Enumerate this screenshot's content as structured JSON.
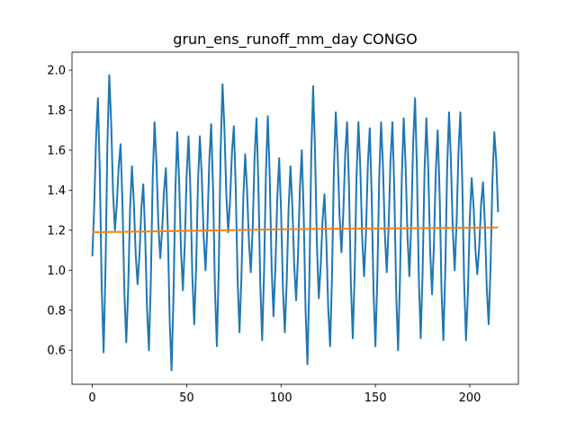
{
  "chart_data": {
    "type": "line",
    "title": "grun_ens_runoff_mm_day CONGO",
    "xlim": [
      -10.75,
      225.75
    ],
    "xticks": [
      0,
      50,
      100,
      150,
      200
    ],
    "ylim": [
      0.43,
      2.09
    ],
    "yticks": [
      0.6,
      0.8,
      {
        "value": 1,
        "label": "1.0"
      },
      1.2,
      1.4,
      1.6,
      1.8,
      {
        "value": 2,
        "label": "2.0"
      }
    ],
    "grid": false,
    "series": [
      {
        "color": "#1f77b4",
        "x": [
          0,
          1,
          2,
          3,
          4,
          5,
          6,
          7,
          8,
          9,
          10,
          11,
          12,
          13,
          14,
          15,
          16,
          17,
          18,
          19,
          20,
          21,
          22,
          23,
          24,
          25,
          26,
          27,
          28,
          29,
          30,
          31,
          32,
          33,
          34,
          35,
          36,
          37,
          38,
          39,
          40,
          41,
          42,
          43,
          44,
          45,
          46,
          47,
          48,
          49,
          50,
          51,
          52,
          53,
          54,
          55,
          56,
          57,
          58,
          59,
          60,
          61,
          62,
          63,
          64,
          65,
          66,
          67,
          68,
          69,
          70,
          71,
          72,
          73,
          74,
          75,
          76,
          77,
          78,
          79,
          80,
          81,
          82,
          83,
          84,
          85,
          86,
          87,
          88,
          89,
          90,
          91,
          92,
          93,
          94,
          95,
          96,
          97,
          98,
          99,
          100,
          101,
          102,
          103,
          104,
          105,
          106,
          107,
          108,
          109,
          110,
          111,
          112,
          113,
          114,
          115,
          116,
          117,
          118,
          119,
          120,
          121,
          122,
          123,
          124,
          125,
          126,
          127,
          128,
          129,
          130,
          131,
          132,
          133,
          134,
          135,
          136,
          137,
          138,
          139,
          140,
          141,
          142,
          143,
          144,
          145,
          146,
          147,
          148,
          149,
          150,
          151,
          152,
          153,
          154,
          155,
          156,
          157,
          158,
          159,
          160,
          161,
          162,
          163,
          164,
          165,
          166,
          167,
          168,
          169,
          170,
          171,
          172,
          173,
          174,
          175,
          176,
          177,
          178,
          179,
          180,
          181,
          182,
          183,
          184,
          185,
          186,
          187,
          188,
          189,
          190,
          191,
          192,
          193,
          194,
          195,
          196,
          197,
          198,
          199,
          200,
          201,
          202,
          203,
          204,
          205,
          206,
          207,
          208,
          209,
          210,
          211,
          212,
          213,
          214,
          215
        ],
        "values": [
          1.07,
          1.31,
          1.66,
          1.86,
          1.48,
          0.91,
          0.59,
          1.01,
          1.63,
          1.975,
          1.74,
          1.39,
          1.2,
          1.33,
          1.52,
          1.63,
          1.33,
          0.89,
          0.64,
          0.9,
          1.3,
          1.52,
          1.34,
          1.08,
          0.93,
          1.08,
          1.31,
          1.43,
          1.18,
          0.81,
          0.6,
          0.94,
          1.46,
          1.74,
          1.54,
          1.23,
          1.06,
          1.2,
          1.4,
          1.51,
          1.21,
          0.75,
          0.5,
          0.86,
          1.39,
          1.69,
          1.45,
          1.1,
          0.9,
          1.13,
          1.48,
          1.67,
          1.39,
          0.97,
          0.73,
          1.01,
          1.44,
          1.67,
          1.47,
          1.17,
          1.0,
          1.22,
          1.55,
          1.73,
          1.4,
          0.9,
          0.62,
          1.01,
          1.6,
          1.93,
          1.71,
          1.38,
          1.19,
          1.35,
          1.59,
          1.72,
          1.41,
          0.95,
          0.69,
          0.96,
          1.36,
          1.58,
          1.4,
          1.14,
          0.99,
          1.22,
          1.57,
          1.76,
          1.43,
          0.93,
          0.65,
          0.99,
          1.49,
          1.77,
          1.47,
          1.02,
          0.77,
          1.01,
          1.36,
          1.56,
          1.3,
          0.91,
          0.69,
          0.94,
          1.31,
          1.52,
          1.32,
          1.02,
          0.85,
          1.08,
          1.41,
          1.6,
          1.28,
          0.8,
          0.53,
          0.95,
          1.57,
          1.92,
          1.6,
          1.13,
          0.86,
          1.02,
          1.25,
          1.38,
          1.15,
          0.81,
          0.62,
          0.97,
          1.5,
          1.79,
          1.58,
          1.27,
          1.09,
          1.29,
          1.58,
          1.74,
          1.42,
          0.93,
          0.66,
          0.98,
          1.47,
          1.74,
          1.51,
          1.16,
          0.97,
          1.19,
          1.53,
          1.71,
          1.38,
          0.89,
          0.62,
          0.96,
          1.46,
          1.74,
          1.52,
          1.18,
          0.99,
          1.22,
          1.55,
          1.74,
          1.4,
          0.89,
          0.6,
          0.95,
          1.47,
          1.76,
          1.52,
          1.17,
          0.97,
          1.24,
          1.64,
          1.86,
          1.5,
          0.96,
          0.66,
          0.99,
          1.49,
          1.76,
          1.5,
          1.1,
          0.88,
          1.13,
          1.5,
          1.7,
          1.39,
          0.91,
          0.65,
          0.99,
          1.51,
          1.79,
          1.55,
          1.2,
          1.0,
          1.24,
          1.59,
          1.79,
          1.45,
          0.94,
          0.65,
          0.89,
          1.26,
          1.46,
          1.32,
          1.1,
          0.98,
          1.12,
          1.33,
          1.44,
          1.23,
          0.91,
          0.73,
          1.02,
          1.45,
          1.69,
          1.55,
          1.29
        ]
      },
      {
        "color": "#ff7f0e",
        "x": [
          0,
          50,
          100,
          150,
          215
        ],
        "values": [
          1.19,
          1.197,
          1.205,
          1.209,
          1.214
        ]
      }
    ]
  }
}
